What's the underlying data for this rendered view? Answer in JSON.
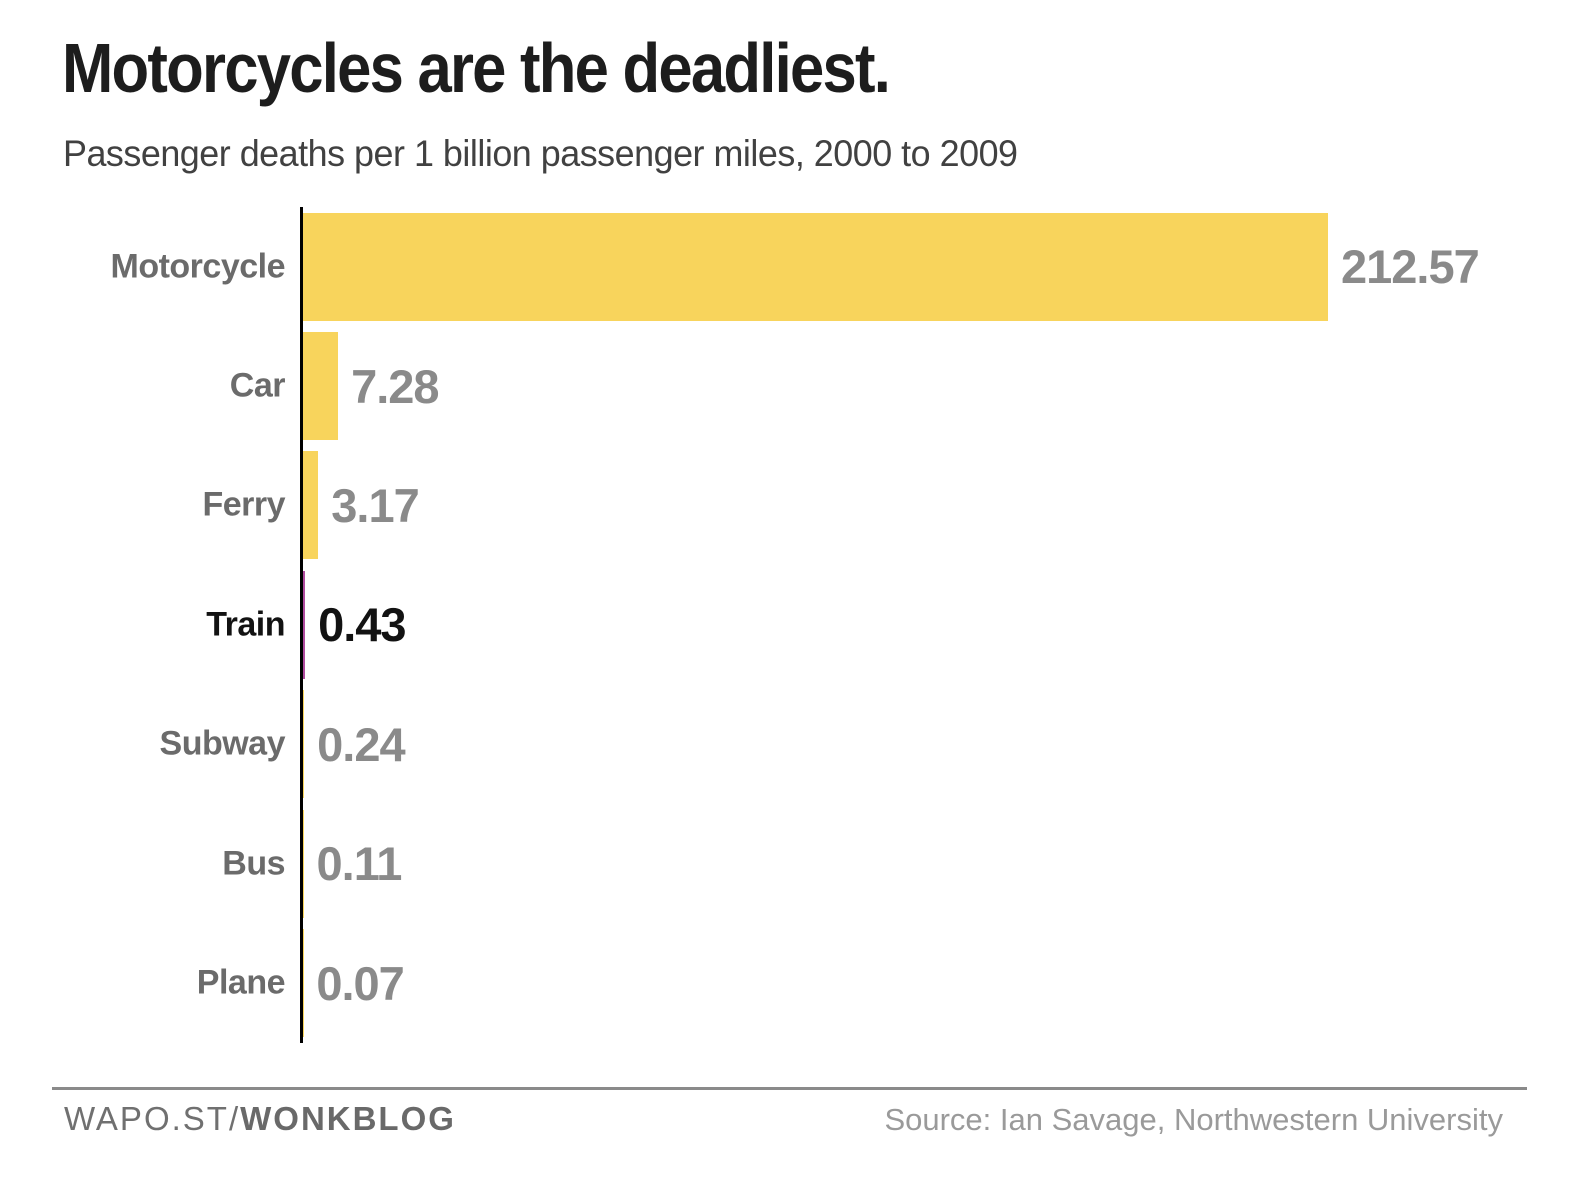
{
  "header": {
    "title": "Motorcycles are the deadliest.",
    "subtitle": "Passenger deaths per 1 billion passenger miles, 2000 to 2009"
  },
  "chart_data": {
    "type": "bar",
    "orientation": "horizontal",
    "title": "Motorcycles are the deadliest.",
    "subtitle": "Passenger deaths per 1 billion passenger miles, 2000 to 2009",
    "categories": [
      "Motorcycle",
      "Car",
      "Ferry",
      "Train",
      "Subway",
      "Bus",
      "Plane"
    ],
    "values": [
      212.57,
      7.28,
      3.17,
      0.43,
      0.24,
      0.11,
      0.07
    ],
    "value_labels": [
      "212.57",
      "7.28",
      "3.17",
      "0.43",
      "0.24",
      "0.11",
      "0.07"
    ],
    "xlim": [
      0,
      212.57
    ],
    "grid": false,
    "legend": false,
    "highlighted_category": "Train",
    "colors": {
      "bar": "#F8D45C",
      "highlight_bar": "#AF4B9E",
      "category_label": "#6B6B6B",
      "value_label": "#8A8A8A",
      "highlight_text": "#121212",
      "axis": "#000000"
    }
  },
  "footer": {
    "brand_prefix": "WAPO.ST/",
    "brand_bold": "WONKBLOG",
    "source": "Source: Ian Savage, Northwestern University"
  }
}
